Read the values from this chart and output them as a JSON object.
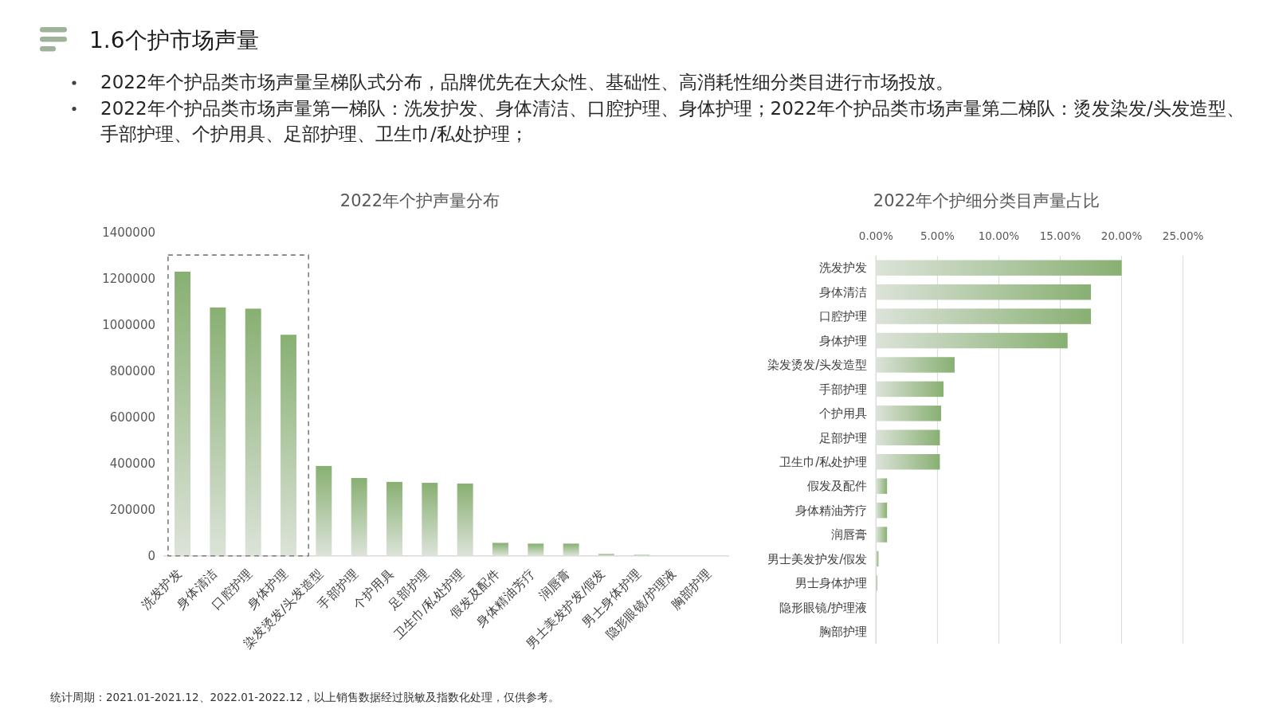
{
  "chart_data": [
    {
      "type": "other",
      "title": "1.6个护市场声量",
      "annotations": [
        "2022年个护品类市场声量呈梯队式分布，品牌优先在大众性、基础性、高消耗性细分类目进行市场投放。",
        "2022年个护品类市场声量第一梯队：洗发护发、身体清洁、口腔护理、身体护理；2022年个护品类市场声量第二梯队：烫发染发/头发造型、手部护理、个护用具、足部护理、卫生巾/私处护理；"
      ]
    },
    {
      "type": "bar",
      "title": "2022年个护声量分布",
      "categories": [
        "洗发护发",
        "身体清洁",
        "口腔护理",
        "身体护理",
        "染发烫发/头发造型",
        "手部护理",
        "个护用具",
        "足部护理",
        "卫生巾/私处护理",
        "假发及配件",
        "身体精油芳疗",
        "润唇膏",
        "男士美发护发/假发",
        "男士身体护理",
        "隐形眼镜/护理液",
        "胸部护理"
      ],
      "values": [
        1230000,
        1075000,
        1070000,
        957000,
        389000,
        337000,
        320000,
        316000,
        313000,
        56000,
        53000,
        53000,
        8000,
        4000,
        0,
        0
      ],
      "color": "#88b072",
      "ylim": [
        0,
        1400000
      ],
      "yticks": [
        0,
        200000,
        400000,
        600000,
        800000,
        1000000,
        1200000,
        1400000
      ],
      "annotations": [
        "统计周期：2021.01-2021.12、2022.01-2022.12，以上销售数据经过脱敏及指数化处理，仅供参考。"
      ]
    },
    {
      "type": "bar",
      "orientation": "horizontal",
      "title": "2022年个护细分类目声量占比",
      "categories": [
        "洗发护发",
        "身体清洁",
        "口腔护理",
        "身体护理",
        "染发烫发/头发造型",
        "手部护理",
        "个护用具",
        "足部护理",
        "卫生巾/私处护理",
        "假发及配件",
        "身体精油芳疗",
        "润唇膏",
        "男士美发护发/假发",
        "男士身体护理",
        "隐形眼镜/护理液",
        "胸部护理"
      ],
      "values": [
        20.0,
        17.5,
        17.5,
        15.6,
        6.4,
        5.5,
        5.3,
        5.2,
        5.2,
        0.9,
        0.9,
        0.9,
        0.2,
        0.1,
        0,
        0
      ],
      "color": "#88b072",
      "xlim": [
        0,
        25
      ],
      "xticks": [
        {
          "value": 0,
          "label": "0.00%"
        },
        {
          "value": 5,
          "label": "5.00%"
        },
        {
          "value": 10,
          "label": "10.00%"
        },
        {
          "value": 15,
          "label": "15.00%"
        },
        {
          "value": 20,
          "label": "20.00%"
        },
        {
          "value": 25,
          "label": "25.00%"
        }
      ],
      "grid": "x"
    }
  ]
}
